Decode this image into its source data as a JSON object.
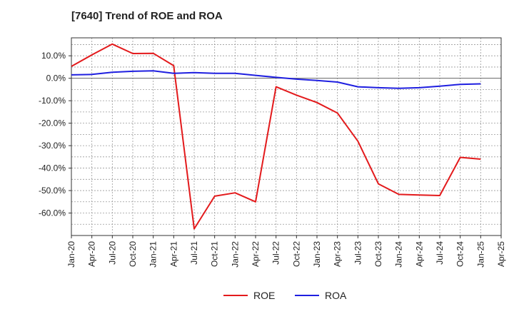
{
  "chart_data": {
    "type": "line",
    "title": "[7640]  Trend of ROE and ROA",
    "xlabel": "",
    "ylabel": "",
    "x": [
      "Jan-20",
      "Apr-20",
      "Jul-20",
      "Oct-20",
      "Jan-21",
      "Apr-21",
      "Jul-21",
      "Oct-21",
      "Jan-22",
      "Apr-22",
      "Jul-22",
      "Oct-22",
      "Jan-23",
      "Apr-23",
      "Jul-23",
      "Oct-23",
      "Jan-24",
      "Apr-24",
      "Jul-24",
      "Oct-24",
      "Jan-25",
      "Apr-25"
    ],
    "ylim": [
      -70,
      18
    ],
    "y_ticks": [
      10,
      0,
      -10,
      -20,
      -30,
      -40,
      -50,
      -60
    ],
    "y_tick_labels": [
      "10.0%",
      "0.0%",
      "-10.0%",
      "-20.0%",
      "-30.0%",
      "-40.0%",
      "-50.0%",
      "-60.0%"
    ],
    "grid": true,
    "legend_position": "bottom",
    "series": [
      {
        "name": "ROE",
        "color": "#e31a1c",
        "values": [
          5.3,
          10.4,
          15.2,
          11.0,
          11.1,
          5.6,
          -67.0,
          -52.5,
          -51.0,
          -55.0,
          -3.8,
          -7.5,
          -10.8,
          -15.5,
          -28.0,
          -47.0,
          -51.7,
          -52.0,
          -52.2,
          -35.2,
          -36.0,
          null
        ]
      },
      {
        "name": "ROA",
        "color": "#1f1fe0",
        "values": [
          1.5,
          1.7,
          2.7,
          3.1,
          3.3,
          2.2,
          2.5,
          2.2,
          2.2,
          1.3,
          0.4,
          -0.4,
          -1.0,
          -1.7,
          -3.8,
          -4.2,
          -4.5,
          -4.2,
          -3.5,
          -2.7,
          -2.5,
          null
        ]
      }
    ]
  }
}
